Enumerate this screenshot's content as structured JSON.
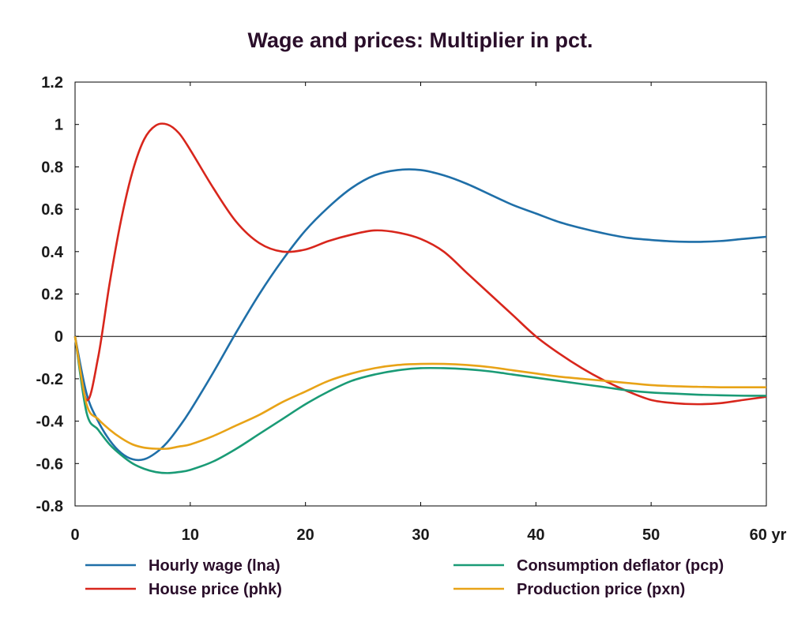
{
  "chart_data": {
    "type": "line",
    "title": "Wage and prices: Multiplier in pct.",
    "xlabel": "",
    "ylabel": "",
    "xlim": [
      0,
      60
    ],
    "ylim": [
      -0.8,
      1.2
    ],
    "x_ticks": [
      "0",
      "10",
      "20",
      "30",
      "40",
      "50",
      "60 yr"
    ],
    "x_tick_values": [
      0,
      10,
      20,
      30,
      40,
      50,
      60
    ],
    "y_ticks": [
      "1.2",
      "1",
      "0.8",
      "0.6",
      "0.4",
      "0.2",
      "0",
      "-0.2",
      "-0.4",
      "-0.6",
      "-0.8"
    ],
    "y_tick_values": [
      1.2,
      1,
      0.8,
      0.6,
      0.4,
      0.2,
      0,
      -0.2,
      -0.4,
      -0.6,
      -0.8
    ],
    "grid": false,
    "legend_position": "bottom",
    "series": [
      {
        "name": "Hourly wage (lna)",
        "color": "#1f6fa8",
        "x": [
          0,
          1,
          2,
          3,
          4,
          5,
          6,
          7,
          8,
          9,
          10,
          12,
          14,
          16,
          18,
          20,
          22,
          24,
          26,
          28,
          30,
          32,
          34,
          36,
          38,
          40,
          42,
          44,
          46,
          48,
          50,
          52,
          54,
          56,
          58,
          60
        ],
        "y": [
          0,
          -0.27,
          -0.4,
          -0.49,
          -0.55,
          -0.58,
          -0.58,
          -0.55,
          -0.5,
          -0.43,
          -0.35,
          -0.17,
          0.02,
          0.2,
          0.36,
          0.5,
          0.61,
          0.7,
          0.76,
          0.785,
          0.785,
          0.76,
          0.72,
          0.67,
          0.62,
          0.58,
          0.54,
          0.51,
          0.485,
          0.465,
          0.455,
          0.448,
          0.446,
          0.45,
          0.46,
          0.47
        ]
      },
      {
        "name": "House price (phk)",
        "color": "#d8261c",
        "x": [
          0,
          1,
          2,
          3,
          4,
          5,
          6,
          7,
          8,
          9,
          10,
          12,
          14,
          16,
          18,
          20,
          22,
          24,
          26,
          28,
          30,
          32,
          34,
          36,
          38,
          40,
          42,
          44,
          46,
          48,
          50,
          52,
          54,
          56,
          58,
          60
        ],
        "y": [
          0,
          -0.3,
          -0.1,
          0.25,
          0.55,
          0.78,
          0.93,
          0.995,
          1.0,
          0.96,
          0.88,
          0.7,
          0.54,
          0.44,
          0.4,
          0.41,
          0.45,
          0.48,
          0.5,
          0.49,
          0.46,
          0.4,
          0.3,
          0.2,
          0.1,
          0.0,
          -0.08,
          -0.15,
          -0.21,
          -0.26,
          -0.3,
          -0.315,
          -0.32,
          -0.315,
          -0.3,
          -0.285
        ]
      },
      {
        "name": "Consumption deflator (pcp)",
        "color": "#1a9b76",
        "x": [
          0,
          1,
          2,
          3,
          4,
          5,
          6,
          7,
          8,
          9,
          10,
          12,
          14,
          16,
          18,
          20,
          22,
          24,
          26,
          28,
          30,
          32,
          34,
          36,
          38,
          40,
          42,
          44,
          46,
          48,
          50,
          52,
          54,
          56,
          58,
          60
        ],
        "y": [
          0,
          -0.36,
          -0.44,
          -0.51,
          -0.56,
          -0.6,
          -0.625,
          -0.64,
          -0.645,
          -0.64,
          -0.63,
          -0.59,
          -0.53,
          -0.46,
          -0.39,
          -0.32,
          -0.26,
          -0.21,
          -0.18,
          -0.16,
          -0.15,
          -0.15,
          -0.155,
          -0.165,
          -0.18,
          -0.195,
          -0.21,
          -0.225,
          -0.24,
          -0.255,
          -0.265,
          -0.27,
          -0.275,
          -0.278,
          -0.28,
          -0.28
        ]
      },
      {
        "name": "Production price (pxn)",
        "color": "#e8a317",
        "x": [
          0,
          1,
          2,
          3,
          4,
          5,
          6,
          7,
          8,
          9,
          10,
          12,
          14,
          16,
          18,
          20,
          22,
          24,
          26,
          28,
          30,
          32,
          34,
          36,
          38,
          40,
          42,
          44,
          46,
          48,
          50,
          52,
          54,
          56,
          58,
          60
        ],
        "y": [
          0,
          -0.32,
          -0.39,
          -0.44,
          -0.48,
          -0.51,
          -0.525,
          -0.53,
          -0.53,
          -0.52,
          -0.51,
          -0.47,
          -0.42,
          -0.37,
          -0.31,
          -0.26,
          -0.21,
          -0.175,
          -0.15,
          -0.135,
          -0.13,
          -0.13,
          -0.135,
          -0.145,
          -0.16,
          -0.175,
          -0.19,
          -0.2,
          -0.21,
          -0.22,
          -0.23,
          -0.235,
          -0.238,
          -0.24,
          -0.24,
          -0.24
        ]
      }
    ]
  }
}
